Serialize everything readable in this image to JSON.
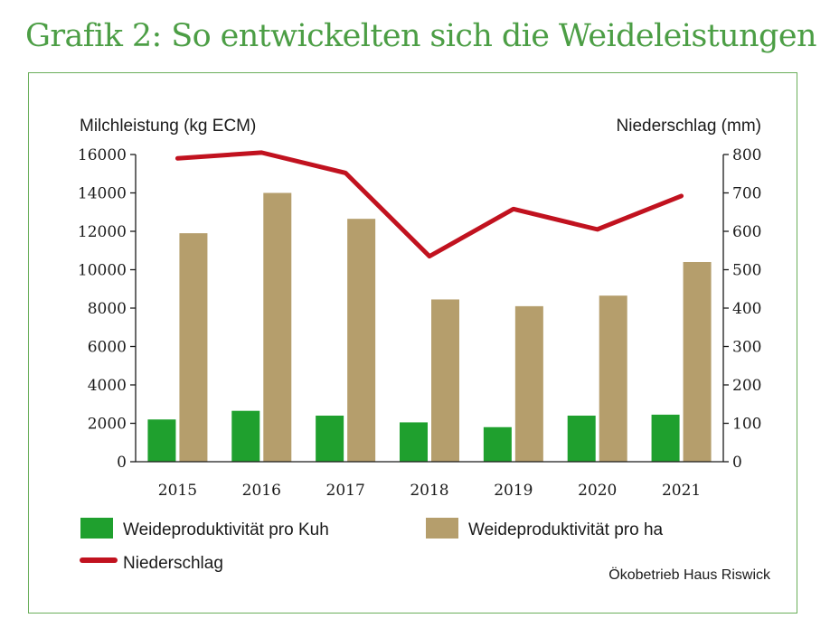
{
  "title": "Grafik 2: So entwickelten sich die Weideleistungen",
  "source": "Ökobetrieb Haus Riswick",
  "colors": {
    "title": "#4c9e45",
    "frame": "#6aae5a",
    "kuh": "#1fa02e",
    "ha": "#b59e6c",
    "niederschlag": "#c1121f",
    "axis": "#1a1a1a"
  },
  "chart_data": {
    "type": "bar",
    "categories": [
      "2015",
      "2016",
      "2017",
      "2018",
      "2019",
      "2020",
      "2021"
    ],
    "series": [
      {
        "name": "Weideproduktivität pro Kuh",
        "type": "bar",
        "axis": "left",
        "values": [
          2200,
          2650,
          2400,
          2050,
          1800,
          2400,
          2450
        ]
      },
      {
        "name": "Weideproduktivität pro ha",
        "type": "bar",
        "axis": "left",
        "values": [
          11900,
          14000,
          12650,
          8450,
          8100,
          8650,
          10400
        ]
      },
      {
        "name": "Niederschlag",
        "type": "line",
        "axis": "right",
        "values": [
          790,
          805,
          752,
          535,
          658,
          605,
          692
        ]
      }
    ],
    "ylabel": "Milchleistung (kg ECM)",
    "y2label": "Niederschlag (mm)",
    "ylim": [
      0,
      16000
    ],
    "y2lim": [
      0,
      800
    ],
    "yticks": [
      0,
      2000,
      4000,
      6000,
      8000,
      10000,
      12000,
      14000,
      16000
    ],
    "yticklabels": [
      "0",
      "2000",
      "4000",
      "6000",
      "8000",
      "10000",
      "12000",
      "14000",
      "16000"
    ],
    "y2ticks": [
      0,
      100,
      200,
      300,
      400,
      500,
      600,
      700,
      800
    ],
    "yticklabels2": [
      "0",
      "100",
      "200",
      "300",
      "400",
      "500",
      "600",
      "700",
      "800"
    ],
    "grid": false,
    "legend": "bottom"
  }
}
